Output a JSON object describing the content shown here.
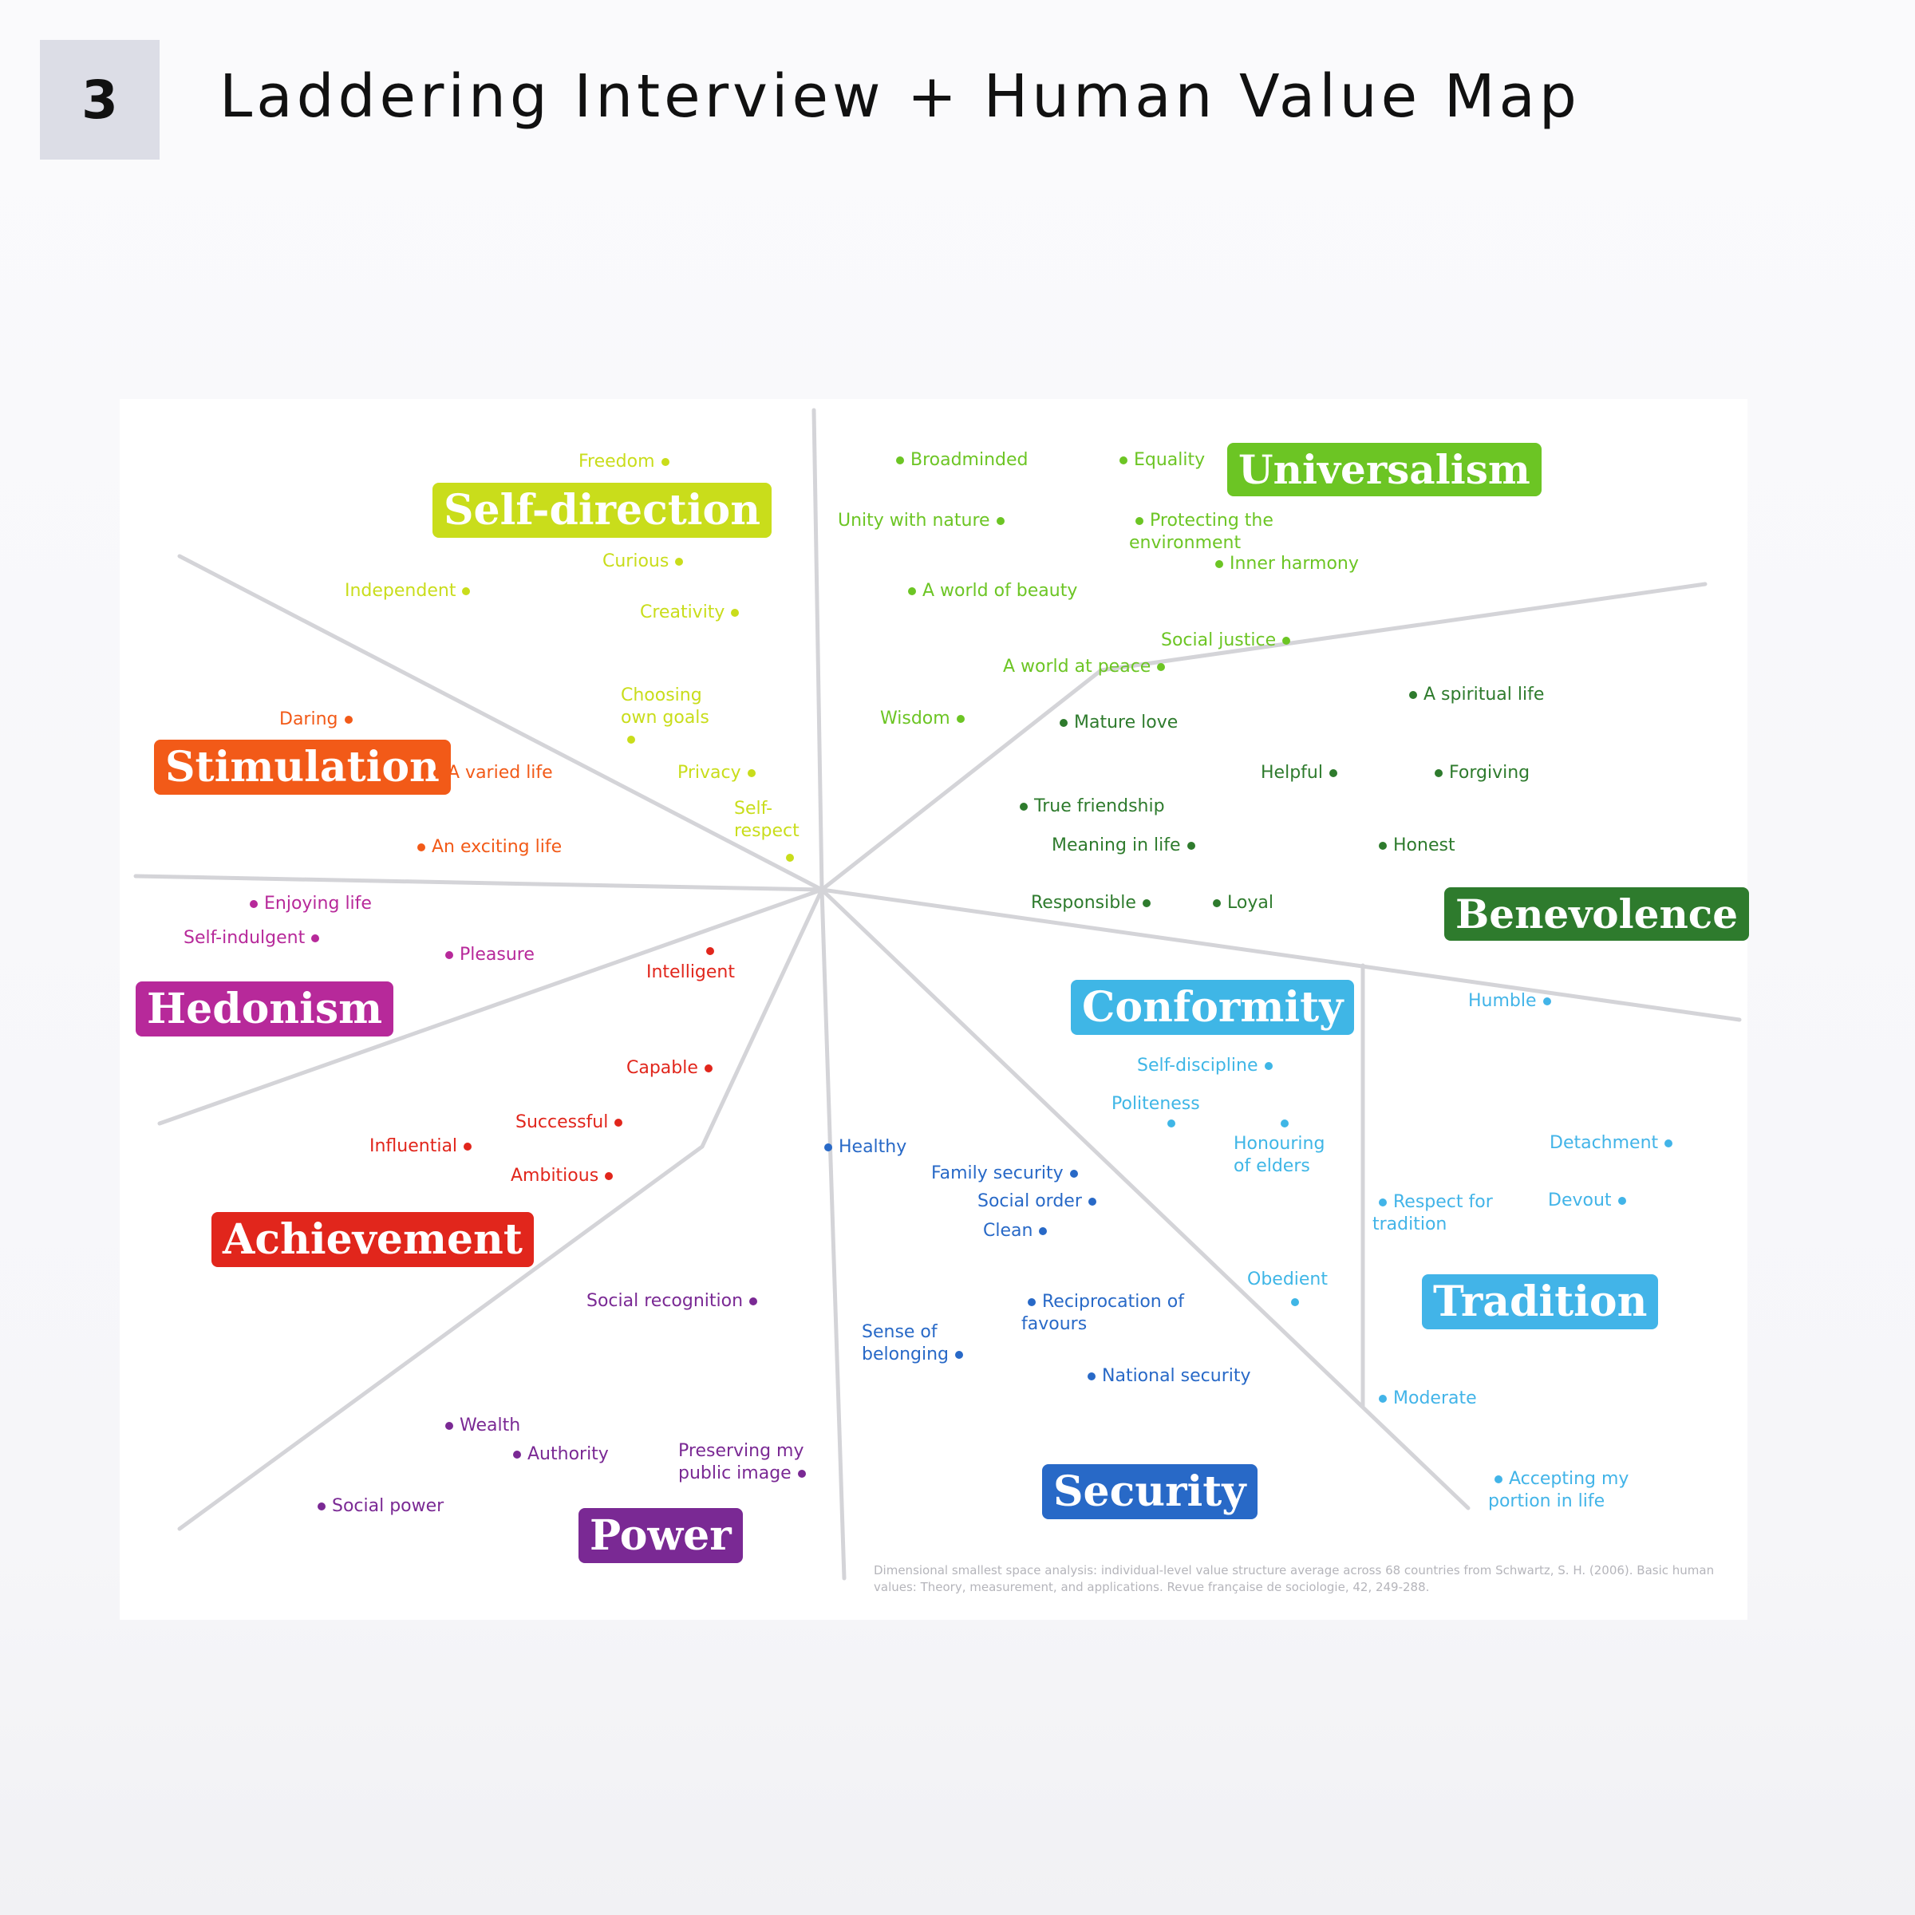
{
  "slide": {
    "number": "3",
    "title": "Laddering Interview + Human Value Map"
  },
  "map": {
    "colors": {
      "self_direction": "#c9dd1b",
      "universalism": "#6cc524",
      "benevolence": "#2e7b2d",
      "conformity": "#3fb6e6",
      "tradition": "#42b4e8",
      "security": "#2869c7",
      "power": "#7a2994",
      "achievement": "#e1261c",
      "hedonism": "#b7299a",
      "stimulation": "#f25a18"
    },
    "categories": {
      "self_direction": "Self-direction",
      "universalism": "Universalism",
      "benevolence": "Benevolence",
      "conformity": "Conformity",
      "tradition": "Tradition",
      "security": "Security",
      "power": "Power",
      "achievement": "Achievement",
      "hedonism": "Hedonism",
      "stimulation": "Stimulation"
    },
    "values": {
      "freedom": "Freedom",
      "curious": "Curious",
      "independent": "Independent",
      "creativity": "Creativity",
      "choosing_own_goals": "Choosing own goals",
      "privacy": "Privacy",
      "self_respect": "Self-respect",
      "broadminded": "Broadminded",
      "equality": "Equality",
      "unity_with_nature": "Unity with nature",
      "protecting_environment": "Protecting the environment",
      "inner_harmony": "Inner harmony",
      "world_of_beauty": "A world of beauty",
      "social_justice": "Social justice",
      "world_at_peace": "A world at peace",
      "wisdom": "Wisdom",
      "mature_love": "Mature love",
      "spiritual_life": "A spiritual life",
      "helpful": "Helpful",
      "forgiving": "Forgiving",
      "true_friendship": "True friendship",
      "meaning_in_life": "Meaning in life",
      "honest": "Honest",
      "responsible": "Responsible",
      "loyal": "Loyal",
      "daring": "Daring",
      "varied_life": "A varied life",
      "exciting_life": "An exciting life",
      "enjoying_life": "Enjoying life",
      "self_indulgent": "Self-indulgent",
      "pleasure": "Pleasure",
      "intelligent": "Intelligent",
      "capable": "Capable",
      "successful": "Successful",
      "influential": "Influential",
      "ambitious": "Ambitious",
      "social_recognition": "Social recognition",
      "wealth": "Wealth",
      "authority": "Authority",
      "preserving_public_image": "Preserving my public image",
      "social_power": "Social power",
      "humble": "Humble",
      "self_discipline": "Self-discipline",
      "politeness": "Politeness",
      "honouring_elders": "Honouring of elders",
      "detachment": "Detachment",
      "respect_tradition": "Respect for tradition",
      "devout": "Devout",
      "obedient": "Obedient",
      "moderate": "Moderate",
      "accepting_portion": "Accepting my portion in life",
      "healthy": "Healthy",
      "family_security": "Family security",
      "social_order": "Social order",
      "clean": "Clean",
      "reciprocation": "Reciprocation of favours",
      "sense_of_belonging": "Sense of belonging",
      "national_security": "National security"
    },
    "caption": "Dimensional smallest space analysis: individual-level value structure average across 68 countries from Schwartz, S. H. (2006). Basic human values: Theory, measurement, and applications. Revue française de sociologie, 42, 249-288."
  }
}
